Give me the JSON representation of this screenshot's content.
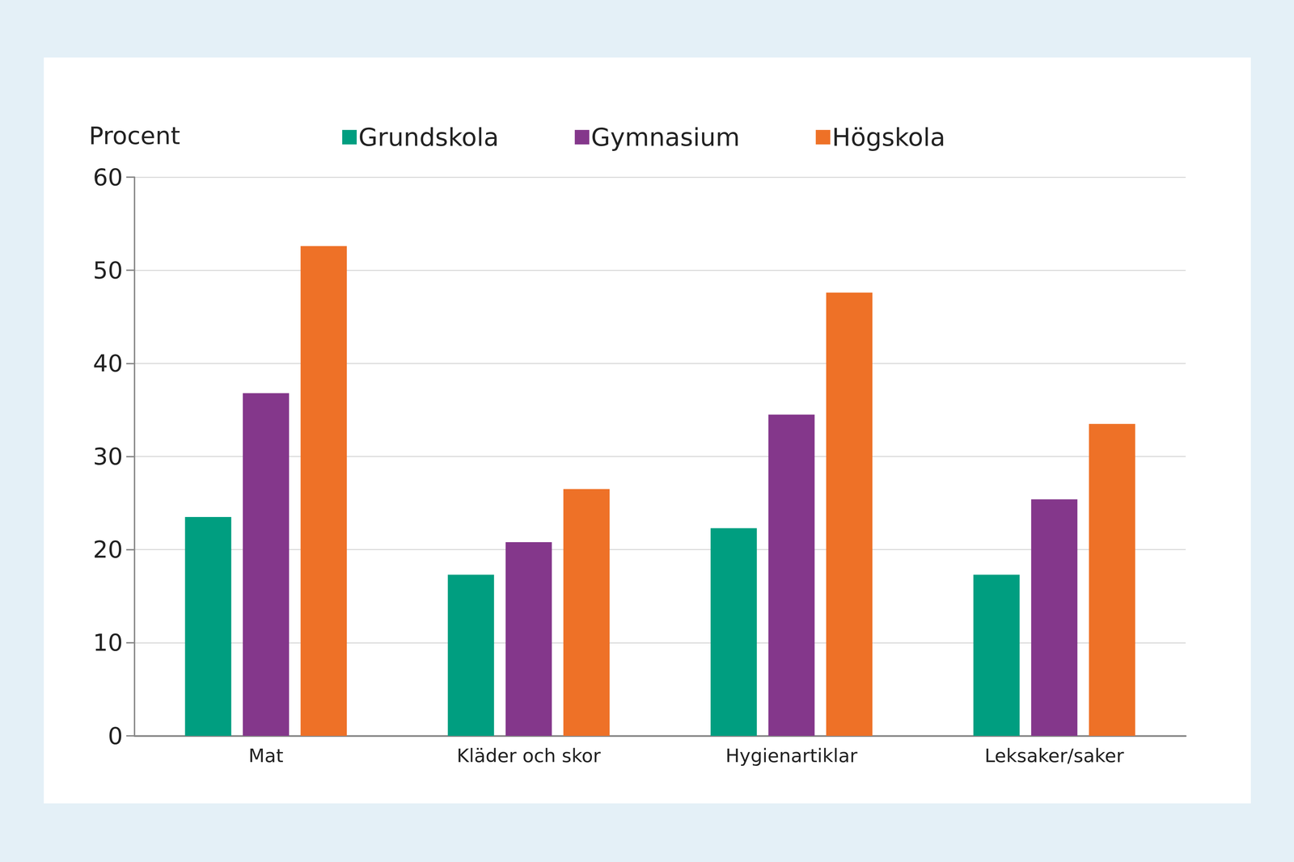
{
  "chart_data": {
    "type": "bar",
    "y_label": "Procent",
    "categories": [
      "Mat",
      "Kläder och skor",
      "Hygienartiklar",
      "Leksaker/saker"
    ],
    "series": [
      {
        "name": "Grundskola",
        "color": "#009e80",
        "values": [
          23.5,
          17.3,
          22.3,
          17.3
        ]
      },
      {
        "name": "Gymnasium",
        "color": "#84378b",
        "values": [
          36.8,
          20.8,
          34.5,
          25.4
        ]
      },
      {
        "name": "Högskola",
        "color": "#ee7127",
        "values": [
          52.6,
          26.5,
          47.6,
          33.5
        ]
      }
    ],
    "ylim": [
      0,
      60
    ],
    "yticks": [
      0,
      10,
      20,
      30,
      40,
      50,
      60
    ],
    "grid": true,
    "legend": "top"
  }
}
